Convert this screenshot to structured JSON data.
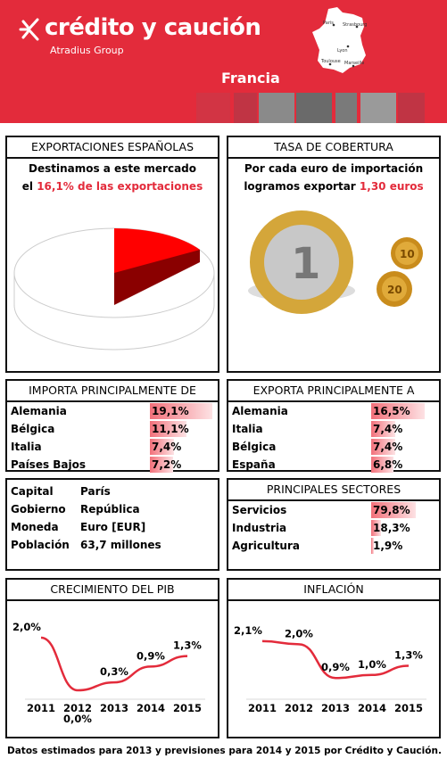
{
  "header": {
    "brand": "crédito y caución",
    "sub": "Atradius Group",
    "country": "Francia",
    "map_cities": [
      "Paris",
      "Strasbourg",
      "Lyon",
      "Toulouse",
      "Marseille"
    ]
  },
  "exportaciones": {
    "title": "EXPORTACIONES ESPAÑOLAS",
    "line1": "Destinamos a este mercado",
    "line2_pre": "el ",
    "line2_highlight": "16,1% de las exportaciones",
    "share": 0.161
  },
  "cobertura": {
    "title": "TASA DE COBERTURA",
    "line1": "Por cada euro de importación",
    "line2_pre": "logramos exportar ",
    "line2_highlight": "1,30 euros",
    "coin_labels": [
      "1",
      "10",
      "20"
    ]
  },
  "importa": {
    "title": "IMPORTA PRINCIPALMENTE DE",
    "rows": [
      {
        "label": "Alemania",
        "value": "19,1%",
        "pct": 19.1
      },
      {
        "label": "Bélgica",
        "value": "11,1%",
        "pct": 11.1
      },
      {
        "label": "Italia",
        "value": "7,4%",
        "pct": 7.4
      },
      {
        "label": "Países Bajos",
        "value": "7,2%",
        "pct": 7.2
      }
    ]
  },
  "exporta": {
    "title": "EXPORTA PRINCIPALMENTE A",
    "rows": [
      {
        "label": "Alemania",
        "value": "16,5%",
        "pct": 16.5
      },
      {
        "label": "Italia",
        "value": "7,4%",
        "pct": 7.4
      },
      {
        "label": "Bélgica",
        "value": "7,4%",
        "pct": 7.4
      },
      {
        "label": "España",
        "value": "6,8%",
        "pct": 6.8
      }
    ]
  },
  "info": {
    "rows": [
      {
        "label": "Capital",
        "value": "París"
      },
      {
        "label": "Gobierno",
        "value": "República"
      },
      {
        "label": "Moneda",
        "value": "Euro [EUR]"
      },
      {
        "label": "Población",
        "value": "63,7 millones"
      }
    ]
  },
  "sectores": {
    "title": "PRINCIPALES SECTORES",
    "rows": [
      {
        "label": "Servicios",
        "value": "79,8%",
        "pct": 79.8
      },
      {
        "label": "Industria",
        "value": "18,3%",
        "pct": 18.3
      },
      {
        "label": "Agricultura",
        "value": "1,9%",
        "pct": 1.9
      }
    ]
  },
  "chart_data": [
    {
      "type": "line",
      "title": "CRECIMIENTO DEL PIB",
      "x": [
        "2011",
        "2012",
        "2013",
        "2014",
        "2015"
      ],
      "series": [
        {
          "values": [
            2.0,
            0.0,
            0.3,
            0.9,
            1.3
          ]
        }
      ],
      "data_labels": [
        "2,0%",
        "0,0%",
        "0,3%",
        "0,9%",
        "1,3%"
      ],
      "ylim": [
        0,
        2.1
      ],
      "color": "#e32b3b"
    },
    {
      "type": "line",
      "title": "INFLACIÓN",
      "x": [
        "2011",
        "2012",
        "2013",
        "2014",
        "2015"
      ],
      "series": [
        {
          "values": [
            2.1,
            2.0,
            0.9,
            1.0,
            1.3
          ]
        }
      ],
      "data_labels": [
        "2,1%",
        "2,0%",
        "0,9%",
        "1,0%",
        "1,3%"
      ],
      "ylim": [
        0.5,
        2.3
      ],
      "color": "#e32b3b"
    }
  ],
  "footer": "Datos estimados para 2013 y previsiones para 2014 y 2015 por Crédito y Caución."
}
